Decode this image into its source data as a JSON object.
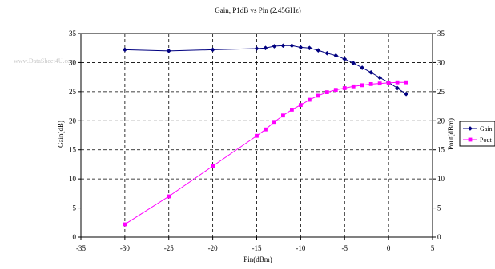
{
  "watermark": "www.DataSheet4U.com",
  "chart_data": {
    "type": "line",
    "title": "Gain, P1dB vs Pin (2.45GHz)",
    "xlabel": "Pin(dBm)",
    "ylabel": "Gain(dB)",
    "y2label": "Pout(dBm)",
    "xlim": [
      -35,
      5
    ],
    "ylim": [
      0,
      35
    ],
    "y2lim": [
      0,
      35
    ],
    "xticks": [
      -35,
      -30,
      -25,
      -20,
      -15,
      -10,
      -5,
      0,
      5
    ],
    "yticks": [
      0,
      5,
      10,
      15,
      20,
      25,
      30,
      35
    ],
    "grid": "dashed",
    "legend": "right",
    "series": [
      {
        "name": "Gain",
        "axis": "left",
        "color": "#000080",
        "marker": "diamond",
        "x": [
          -30,
          -25,
          -20,
          -15,
          -14,
          -13,
          -12,
          -11,
          -10,
          -9,
          -8,
          -7,
          -6,
          -5,
          -4,
          -3,
          -2,
          -1,
          0,
          1,
          2
        ],
        "y": [
          32.2,
          32.0,
          32.2,
          32.4,
          32.5,
          32.8,
          32.9,
          32.9,
          32.6,
          32.5,
          32.1,
          31.6,
          31.2,
          30.6,
          29.9,
          29.1,
          28.3,
          27.4,
          26.6,
          25.6,
          24.6
        ]
      },
      {
        "name": "Pout",
        "axis": "right",
        "color": "#ff00ff",
        "marker": "square",
        "x": [
          -30,
          -25,
          -20,
          -15,
          -14,
          -13,
          -12,
          -11,
          -10,
          -9,
          -8,
          -7,
          -6,
          -5,
          -4,
          -3,
          -2,
          -1,
          0,
          1,
          2
        ],
        "y": [
          2.2,
          7.0,
          12.2,
          17.4,
          18.5,
          19.8,
          20.9,
          21.9,
          22.7,
          23.6,
          24.3,
          24.9,
          25.3,
          25.6,
          25.9,
          26.1,
          26.3,
          26.4,
          26.5,
          26.6,
          26.6
        ]
      }
    ]
  }
}
